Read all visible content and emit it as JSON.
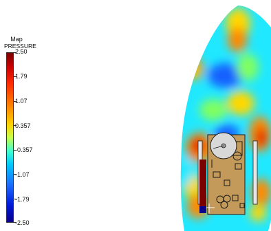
{
  "legend": {
    "title_line1": "Map",
    "title_line2": "PRESSURE",
    "ticks": [
      "2.50",
      "1.79",
      "1.07",
      "0.357",
      "-0.357",
      "-1.07",
      "-1.79",
      "-2.50"
    ]
  },
  "colors": {
    "dark_red": "#7a0000",
    "red": "#e00000",
    "orange": "#ff8a00",
    "yellow": "#ffd800",
    "green": "#80ff60",
    "cyan": "#20e8ff",
    "blue": "#1860ff",
    "dark_blue": "#0a008a",
    "mechanism": "#c49a5a"
  }
}
